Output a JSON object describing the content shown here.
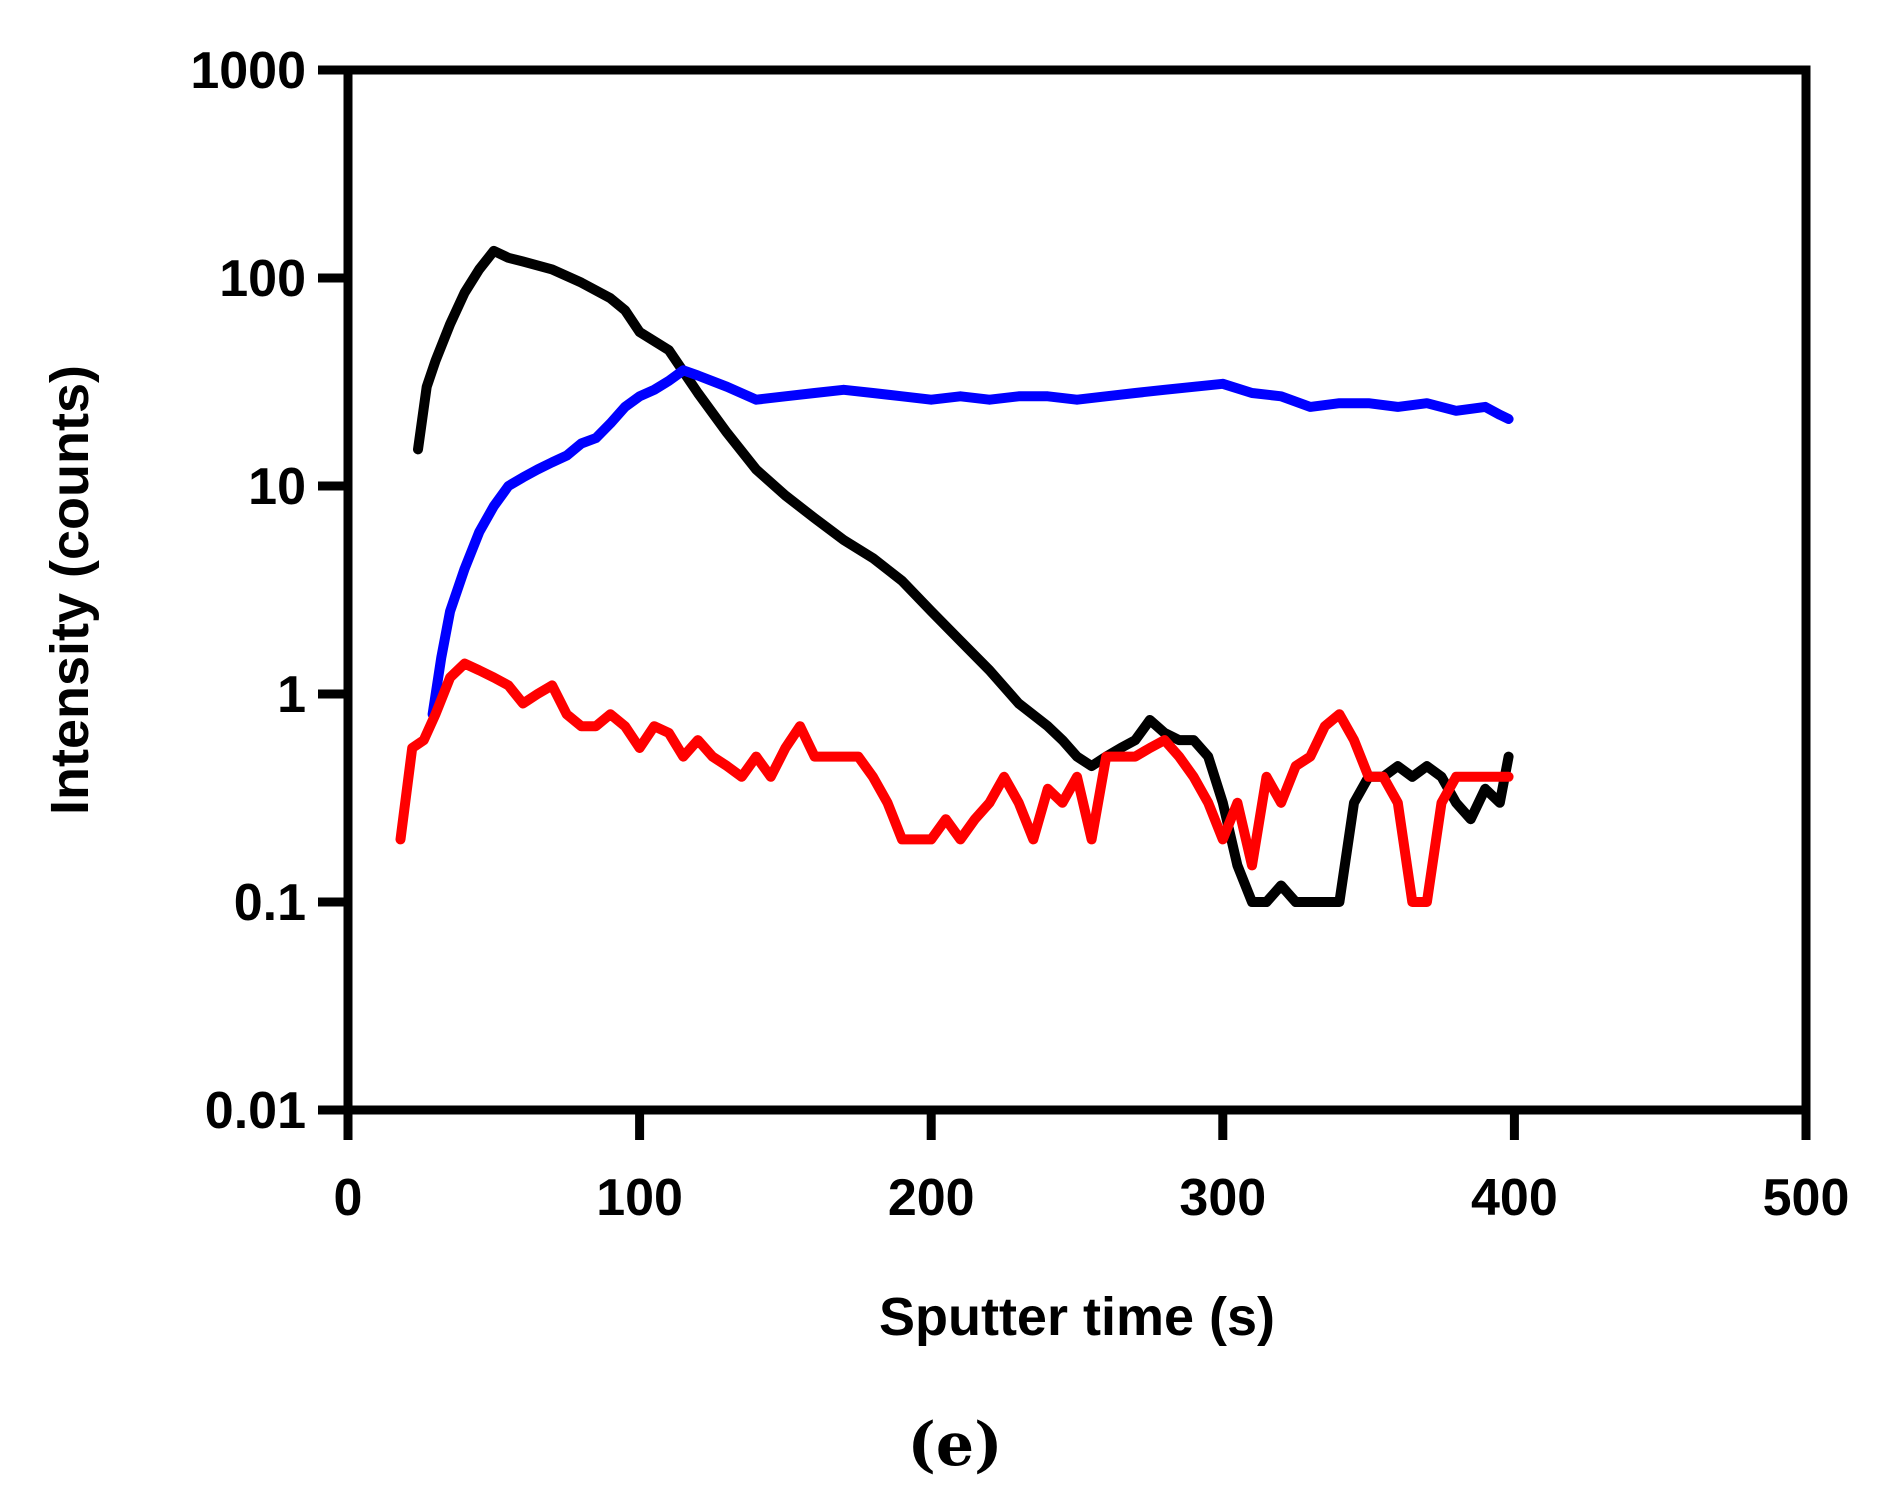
{
  "chart_data": {
    "type": "line",
    "title": "",
    "xlabel": "Sputter time (s)",
    "ylabel": "Intensity (counts)",
    "panel_label": "(e)",
    "xlim": [
      0,
      500
    ],
    "ylim": [
      0.01,
      1000
    ],
    "yscale": "log",
    "grid": false,
    "x_ticks": [
      0,
      100,
      200,
      300,
      400,
      500
    ],
    "x_tick_labels": [
      "0",
      "100",
      "200",
      "300",
      "400",
      "500"
    ],
    "y_ticks": [
      0.01,
      0.1,
      1,
      10,
      100,
      1000
    ],
    "y_tick_labels": [
      "0.01",
      "0.1",
      "1",
      "10",
      "100",
      "1000"
    ],
    "series": [
      {
        "name": "black",
        "color": "#000000",
        "x": [
          24,
          27,
          30,
          35,
          40,
          45,
          50,
          55,
          60,
          70,
          80,
          90,
          95,
          100,
          110,
          120,
          130,
          140,
          150,
          160,
          170,
          180,
          190,
          200,
          210,
          220,
          230,
          240,
          245,
          250,
          255,
          260,
          265,
          270,
          275,
          280,
          285,
          290,
          295,
          300,
          305,
          310,
          315,
          320,
          325,
          330,
          335,
          340,
          345,
          350,
          355,
          360,
          365,
          370,
          375,
          380,
          385,
          390,
          395,
          398
        ],
        "y": [
          15,
          30,
          40,
          60,
          85,
          110,
          135,
          125,
          120,
          110,
          95,
          80,
          70,
          55,
          45,
          28,
          18,
          12,
          9,
          7,
          5.5,
          4.5,
          3.5,
          2.5,
          1.8,
          1.3,
          0.9,
          0.7,
          0.6,
          0.5,
          0.45,
          0.5,
          0.55,
          0.6,
          0.75,
          0.65,
          0.6,
          0.6,
          0.5,
          0.3,
          0.15,
          0.1,
          0.1,
          0.12,
          0.1,
          0.1,
          0.1,
          0.1,
          0.3,
          0.4,
          0.4,
          0.45,
          0.4,
          0.45,
          0.4,
          0.3,
          0.25,
          0.35,
          0.3,
          0.5
        ]
      },
      {
        "name": "blue",
        "color": "#0000ff",
        "x": [
          29,
          32,
          35,
          40,
          45,
          50,
          55,
          60,
          65,
          70,
          75,
          80,
          85,
          90,
          95,
          100,
          105,
          110,
          115,
          120,
          130,
          140,
          150,
          160,
          170,
          180,
          190,
          200,
          210,
          220,
          230,
          240,
          250,
          260,
          270,
          280,
          290,
          300,
          310,
          320,
          330,
          340,
          350,
          360,
          370,
          380,
          390,
          395,
          398
        ],
        "y": [
          0.8,
          1.5,
          2.5,
          4,
          6,
          8,
          10,
          11,
          12,
          13,
          14,
          16,
          17,
          20,
          24,
          27,
          29,
          32,
          36,
          34,
          30,
          26,
          27,
          28,
          29,
          28,
          27,
          26,
          27,
          26,
          27,
          27,
          26,
          27,
          28,
          29,
          30,
          31,
          28,
          27,
          24,
          25,
          25,
          24,
          25,
          23,
          24,
          22,
          21
        ]
      },
      {
        "name": "red",
        "color": "#ff0000",
        "x": [
          18,
          22,
          26,
          30,
          35,
          40,
          45,
          50,
          55,
          60,
          65,
          70,
          75,
          80,
          85,
          90,
          95,
          100,
          105,
          110,
          115,
          120,
          125,
          130,
          135,
          140,
          145,
          150,
          155,
          160,
          165,
          170,
          175,
          180,
          185,
          190,
          195,
          200,
          205,
          210,
          215,
          220,
          225,
          230,
          235,
          240,
          245,
          250,
          255,
          260,
          265,
          270,
          275,
          280,
          285,
          290,
          295,
          300,
          305,
          310,
          315,
          320,
          325,
          330,
          335,
          340,
          345,
          350,
          355,
          360,
          365,
          370,
          375,
          380,
          385,
          390,
          395,
          398
        ],
        "y": [
          0.2,
          0.55,
          0.6,
          0.8,
          1.2,
          1.4,
          1.3,
          1.2,
          1.1,
          0.9,
          1.0,
          1.1,
          0.8,
          0.7,
          0.7,
          0.8,
          0.7,
          0.55,
          0.7,
          0.65,
          0.5,
          0.6,
          0.5,
          0.45,
          0.4,
          0.5,
          0.4,
          0.55,
          0.7,
          0.5,
          0.5,
          0.5,
          0.5,
          0.4,
          0.3,
          0.2,
          0.2,
          0.2,
          0.25,
          0.2,
          0.25,
          0.3,
          0.4,
          0.3,
          0.2,
          0.35,
          0.3,
          0.4,
          0.2,
          0.5,
          0.5,
          0.5,
          0.55,
          0.6,
          0.5,
          0.4,
          0.3,
          0.2,
          0.3,
          0.15,
          0.4,
          0.3,
          0.45,
          0.5,
          0.7,
          0.8,
          0.6,
          0.4,
          0.4,
          0.3,
          0.1,
          0.1,
          0.3,
          0.4,
          0.4,
          0.4,
          0.4,
          0.4
        ]
      }
    ]
  }
}
